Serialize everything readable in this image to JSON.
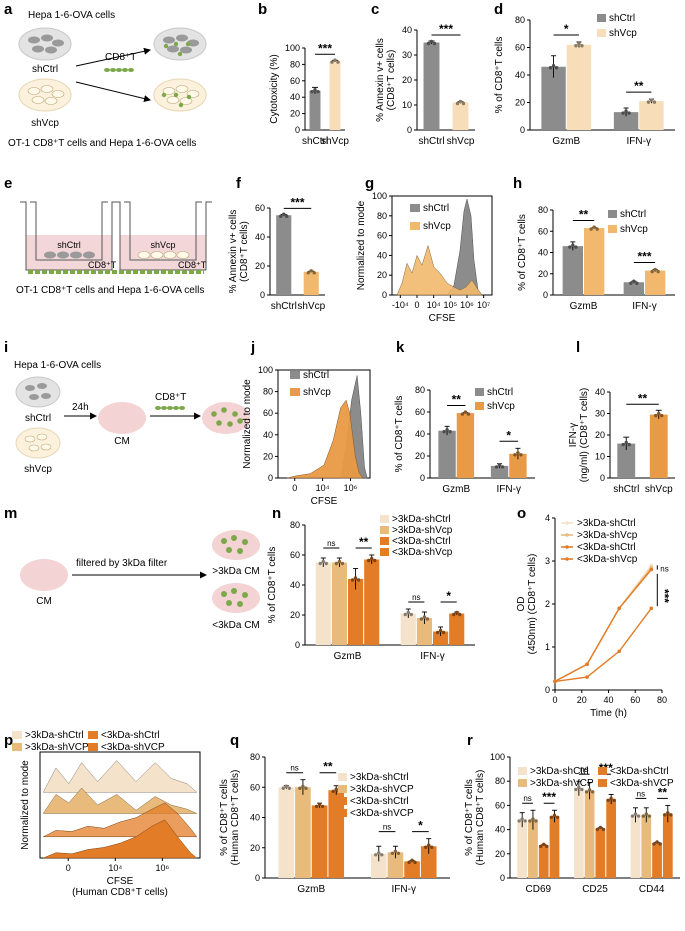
{
  "colors": {
    "shCtrl": "#8c8c8c",
    "shVcp_light": "#f7deb8",
    "shVcp_mid": "#f2b96e",
    "shVcp_dark": "#e99a46",
    "gt_shCtrl": "#f5e2cb",
    "gt_shVcp": "#e8bb7c",
    "lt_shCtrl": "#e37c26",
    "lt_shVcp": "#e37c26",
    "cell_gray": "#bdbdbd",
    "cell_cream": "#f1e7c8",
    "cm_pink": "#f3d3d3",
    "tcell_green": "#7ca84a",
    "well_pink": "#f3d6d8"
  },
  "panel_a": {
    "letter": "a",
    "title": "Hepa 1-6-OVA cells",
    "label_ctrl": "shCtrl",
    "label_vcp": "shVcp",
    "tcell_label": "CD8⁺T",
    "caption": "OT-1 CD8⁺T cells and Hepa 1-6-OVA cells"
  },
  "panel_e": {
    "letter": "e",
    "label_ctrl": "shCtrl",
    "label_vcp": "shVcp",
    "tcell_label": "CD8⁺T",
    "caption": "OT-1 CD8⁺T cells and Hepa 1-6-OVA cells"
  },
  "panel_i": {
    "letter": "i",
    "title": "Hepa 1-6-OVA cells",
    "label_ctrl": "shCtrl",
    "label_vcp": "shVcp",
    "time": "24h",
    "cm": "CM",
    "tcell_label": "CD8⁺T"
  },
  "panel_m": {
    "letter": "m",
    "cm": "CM",
    "arrow_label": "filtered by 3kDa filter",
    "gt": ">3kDa CM",
    "lt": "<3kDa CM"
  },
  "chart_data": [
    {
      "id": "b",
      "type": "bar",
      "ylabel": "Cytotoxicity (%)",
      "ylim": [
        0,
        100
      ],
      "yticks": [
        "0",
        "20",
        "40",
        "60",
        "80",
        "100"
      ],
      "categories": [
        "shCtrl",
        "shVcp"
      ],
      "values": [
        48,
        84
      ],
      "errors": [
        4,
        1
      ],
      "colors": [
        "shCtrl",
        "shVcp_light"
      ],
      "significance": [
        "***"
      ]
    },
    {
      "id": "c",
      "type": "bar",
      "ylabel": "% Annexin v+ cells (CD8⁺T cells)",
      "ylim": [
        0,
        40
      ],
      "yticks": [
        "0",
        "10",
        "20",
        "30",
        "40"
      ],
      "categories": [
        "shCtrl",
        "shVcp"
      ],
      "values": [
        35,
        11
      ],
      "errors": [
        0.6,
        0.3
      ],
      "colors": [
        "shCtrl",
        "shVcp_light"
      ],
      "significance": [
        "***"
      ]
    },
    {
      "id": "d",
      "type": "bar",
      "ylabel": "% of CD8⁺T cells",
      "ylim": [
        0,
        80
      ],
      "yticks": [
        "0",
        "20",
        "40",
        "60",
        "80"
      ],
      "categories": [
        "GzmB",
        "IFN-γ"
      ],
      "series": [
        {
          "name": "shCtrl",
          "values": [
            46,
            13
          ],
          "errors": [
            8,
            3
          ],
          "color": "shCtrl"
        },
        {
          "name": "shVcp",
          "values": [
            62,
            21
          ],
          "errors": [
            2,
            1.5
          ],
          "color": "shVcp_light"
        }
      ],
      "significance": [
        "*",
        "**"
      ]
    },
    {
      "id": "f",
      "type": "bar",
      "ylabel": "% Annexin v+ cells (CD8⁺T cells)",
      "ylim": [
        0,
        60
      ],
      "yticks": [
        "0",
        "20",
        "40",
        "60"
      ],
      "categories": [
        "shCtrl",
        "shVcp"
      ],
      "values": [
        55,
        16
      ],
      "errors": [
        0.6,
        0.4
      ],
      "colors": [
        "shCtrl",
        "shVcp_mid"
      ],
      "significance": [
        "***"
      ]
    },
    {
      "id": "g",
      "type": "histogram",
      "xlabel": "CFSE",
      "ylabel": "Normalized to mode",
      "ylim": [
        0,
        100
      ],
      "yticks": [
        "0",
        "20",
        "40",
        "60",
        "80",
        "100"
      ],
      "xticks": [
        "-10⁴",
        "0",
        "10⁴",
        "10⁵",
        "10⁶",
        "10⁷"
      ],
      "legend": [
        {
          "name": "shCtrl",
          "color": "shCtrl"
        },
        {
          "name": "shVcp",
          "color": "shVcp_mid"
        }
      ]
    },
    {
      "id": "h",
      "type": "bar",
      "ylabel": "% of CD8⁺T cells",
      "ylim": [
        0,
        80
      ],
      "yticks": [
        "0",
        "20",
        "40",
        "60",
        "80"
      ],
      "categories": [
        "GzmB",
        "IFN-γ"
      ],
      "series": [
        {
          "name": "shCtrl",
          "values": [
            46,
            12
          ],
          "errors": [
            4,
            1
          ],
          "color": "shCtrl"
        },
        {
          "name": "shVcp",
          "values": [
            63,
            23
          ],
          "errors": [
            0.5,
            1
          ],
          "color": "shVcp_mid"
        }
      ],
      "significance": [
        "**",
        "***"
      ]
    },
    {
      "id": "j",
      "type": "histogram",
      "xlabel": "CFSE",
      "ylabel": "Normalized to mode",
      "ylim": [
        0,
        100
      ],
      "yticks": [
        "0",
        "20",
        "40",
        "60",
        "80",
        "100"
      ],
      "xticks": [
        "0",
        "10⁴",
        "10⁶"
      ],
      "legend": [
        {
          "name": "shCtrl",
          "color": "shCtrl"
        },
        {
          "name": "shVcp",
          "color": "shVcp_dark"
        }
      ]
    },
    {
      "id": "k",
      "type": "bar",
      "ylabel": "% of CD8⁺T cells",
      "ylim": [
        0,
        80
      ],
      "yticks": [
        "0",
        "20",
        "40",
        "60",
        "80"
      ],
      "categories": [
        "GzmB",
        "IFN-γ"
      ],
      "series": [
        {
          "name": "shCtrl",
          "values": [
            43,
            11
          ],
          "errors": [
            4,
            2
          ],
          "color": "shCtrl"
        },
        {
          "name": "shVcp",
          "values": [
            59,
            22
          ],
          "errors": [
            0.5,
            5
          ],
          "color": "shVcp_dark"
        }
      ],
      "significance": [
        "**",
        "*"
      ]
    },
    {
      "id": "l",
      "type": "bar",
      "ylabel": "IFN-γ (ng/ml) (CD8⁺T cells)",
      "ylim": [
        0,
        40
      ],
      "yticks": [
        "0",
        "10",
        "20",
        "30",
        "40"
      ],
      "categories": [
        "shCtrl",
        "shVcp"
      ],
      "values": [
        16,
        29.5
      ],
      "errors": [
        3,
        2
      ],
      "colors": [
        "shCtrl",
        "shVcp_dark"
      ],
      "significance": [
        "**"
      ]
    },
    {
      "id": "n",
      "type": "bar",
      "ylabel": "% of CD8⁺T cells",
      "ylim": [
        0,
        80
      ],
      "yticks": [
        "0",
        "20",
        "40",
        "60",
        "80"
      ],
      "categories": [
        "GzmB",
        "IFN-γ"
      ],
      "series": [
        {
          "name": ">3kDa-shCtrl",
          "values": [
            55,
            21
          ],
          "errors": [
            3,
            3
          ],
          "color": "gt_shCtrl"
        },
        {
          "name": ">3kDa-shVcp",
          "values": [
            55,
            18
          ],
          "errors": [
            3,
            4
          ],
          "color": "gt_shVcp"
        },
        {
          "name": "<3kDa-shCtrl",
          "values": [
            44,
            9
          ],
          "errors": [
            7,
            3
          ],
          "color": "lt_shCtrl"
        },
        {
          "name": "<3kDa-shVcp",
          "values": [
            57,
            21
          ],
          "errors": [
            3,
            1
          ],
          "color": "lt_shVcp"
        }
      ],
      "significance": [
        {
          "label": "ns"
        },
        {
          "label": "**"
        },
        {
          "label": "ns"
        },
        {
          "label": "*"
        }
      ]
    },
    {
      "id": "o",
      "type": "line",
      "xlabel": "Time (h)",
      "ylabel": "OD (450nm) (CD8⁺T cells)",
      "xlim": [
        0,
        80
      ],
      "ylim": [
        0,
        4
      ],
      "xticks": [
        "0",
        "20",
        "40",
        "60",
        "80"
      ],
      "yticks": [
        "0",
        "1",
        "2",
        "3",
        "4"
      ],
      "x": [
        0,
        24,
        48,
        72
      ],
      "series": [
        {
          "name": ">3kDa-shCtrl",
          "values": [
            0.2,
            0.6,
            1.9,
            2.9
          ],
          "color": "gt_shCtrl"
        },
        {
          "name": ">3kDa-shVcp",
          "values": [
            0.2,
            0.6,
            1.9,
            2.85
          ],
          "color": "gt_shVcp"
        },
        {
          "name": "<3kDa-shCtrl",
          "values": [
            0.2,
            0.3,
            0.9,
            1.9
          ],
          "color": "lt_shCtrl"
        },
        {
          "name": "<3kDa-shVcp",
          "values": [
            0.2,
            0.6,
            1.9,
            2.8
          ],
          "color": "lt_shVcp"
        }
      ],
      "significance": [
        "ns",
        "***"
      ]
    },
    {
      "id": "p",
      "type": "histogram",
      "xlabel": "CFSE",
      "xlabel2": "(Human CD8⁺T cells)",
      "ylabel": "Normalized to mode",
      "xticks": [
        "0",
        "10⁴",
        "10⁶"
      ],
      "legend": [
        {
          "name": ">3kDa-shCtrl",
          "color": "gt_shCtrl"
        },
        {
          "name": "<3kDa-shCtrl",
          "color": "lt_shCtrl"
        },
        {
          "name": ">3kDa-shVCP",
          "color": "gt_shVcp"
        },
        {
          "name": "<3kDa-shVCP",
          "color": "lt_shVcp"
        }
      ]
    },
    {
      "id": "q",
      "type": "bar",
      "ylabel": "% of CD8⁺T cells (Human CD8⁺T cells)",
      "ylim": [
        0,
        80
      ],
      "yticks": [
        "0",
        "20",
        "40",
        "60",
        "80"
      ],
      "categories": [
        "GzmB",
        "IFN-γ"
      ],
      "series": [
        {
          "name": ">3kDa-shCtrl",
          "values": [
            60,
            16
          ],
          "errors": [
            1,
            5
          ],
          "color": "gt_shCtrl"
        },
        {
          "name": ">3kDa-shVCP",
          "values": [
            60,
            17
          ],
          "errors": [
            5,
            4
          ],
          "color": "gt_shVcp"
        },
        {
          "name": "<3kDa-shCtrl",
          "values": [
            48,
            11
          ],
          "errors": [
            1.5,
            0.5
          ],
          "color": "lt_shCtrl"
        },
        {
          "name": "<3kDa-shVCP",
          "values": [
            58,
            21
          ],
          "errors": [
            3,
            5
          ],
          "color": "lt_shVcp"
        }
      ],
      "significance": [
        {
          "label": "ns"
        },
        {
          "label": "**"
        },
        {
          "label": "ns"
        },
        {
          "label": "*"
        }
      ]
    },
    {
      "id": "r",
      "type": "bar",
      "ylabel": "% of CD8⁺T cells (Human CD8⁺T cells)",
      "ylim": [
        0,
        100
      ],
      "yticks": [
        "0",
        "20",
        "40",
        "60",
        "80",
        "100"
      ],
      "categories": [
        "CD69",
        "CD25",
        "CD44"
      ],
      "series": [
        {
          "name": ">3kDa-shCtrl",
          "values": [
            48,
            74,
            52
          ],
          "errors": [
            6,
            6,
            6
          ],
          "color": "gt_shCtrl"
        },
        {
          "name": ">3kDa-shVCP",
          "values": [
            48,
            72,
            52
          ],
          "errors": [
            8,
            7,
            6
          ],
          "color": "gt_shVcp"
        },
        {
          "name": "<3kDa-shCtrl",
          "values": [
            27,
            41,
            29
          ],
          "errors": [
            0.5,
            0.5,
            0.5
          ],
          "color": "lt_shCtrl"
        },
        {
          "name": "<3kDa-shVCP",
          "values": [
            51,
            65,
            53
          ],
          "errors": [
            5,
            4,
            7
          ],
          "color": "lt_shVcp"
        }
      ],
      "significance": [
        {
          "label": "ns"
        },
        {
          "label": "***"
        },
        {
          "label": "ns"
        },
        {
          "label": "***"
        },
        {
          "label": "ns"
        },
        {
          "label": "**"
        }
      ]
    }
  ]
}
